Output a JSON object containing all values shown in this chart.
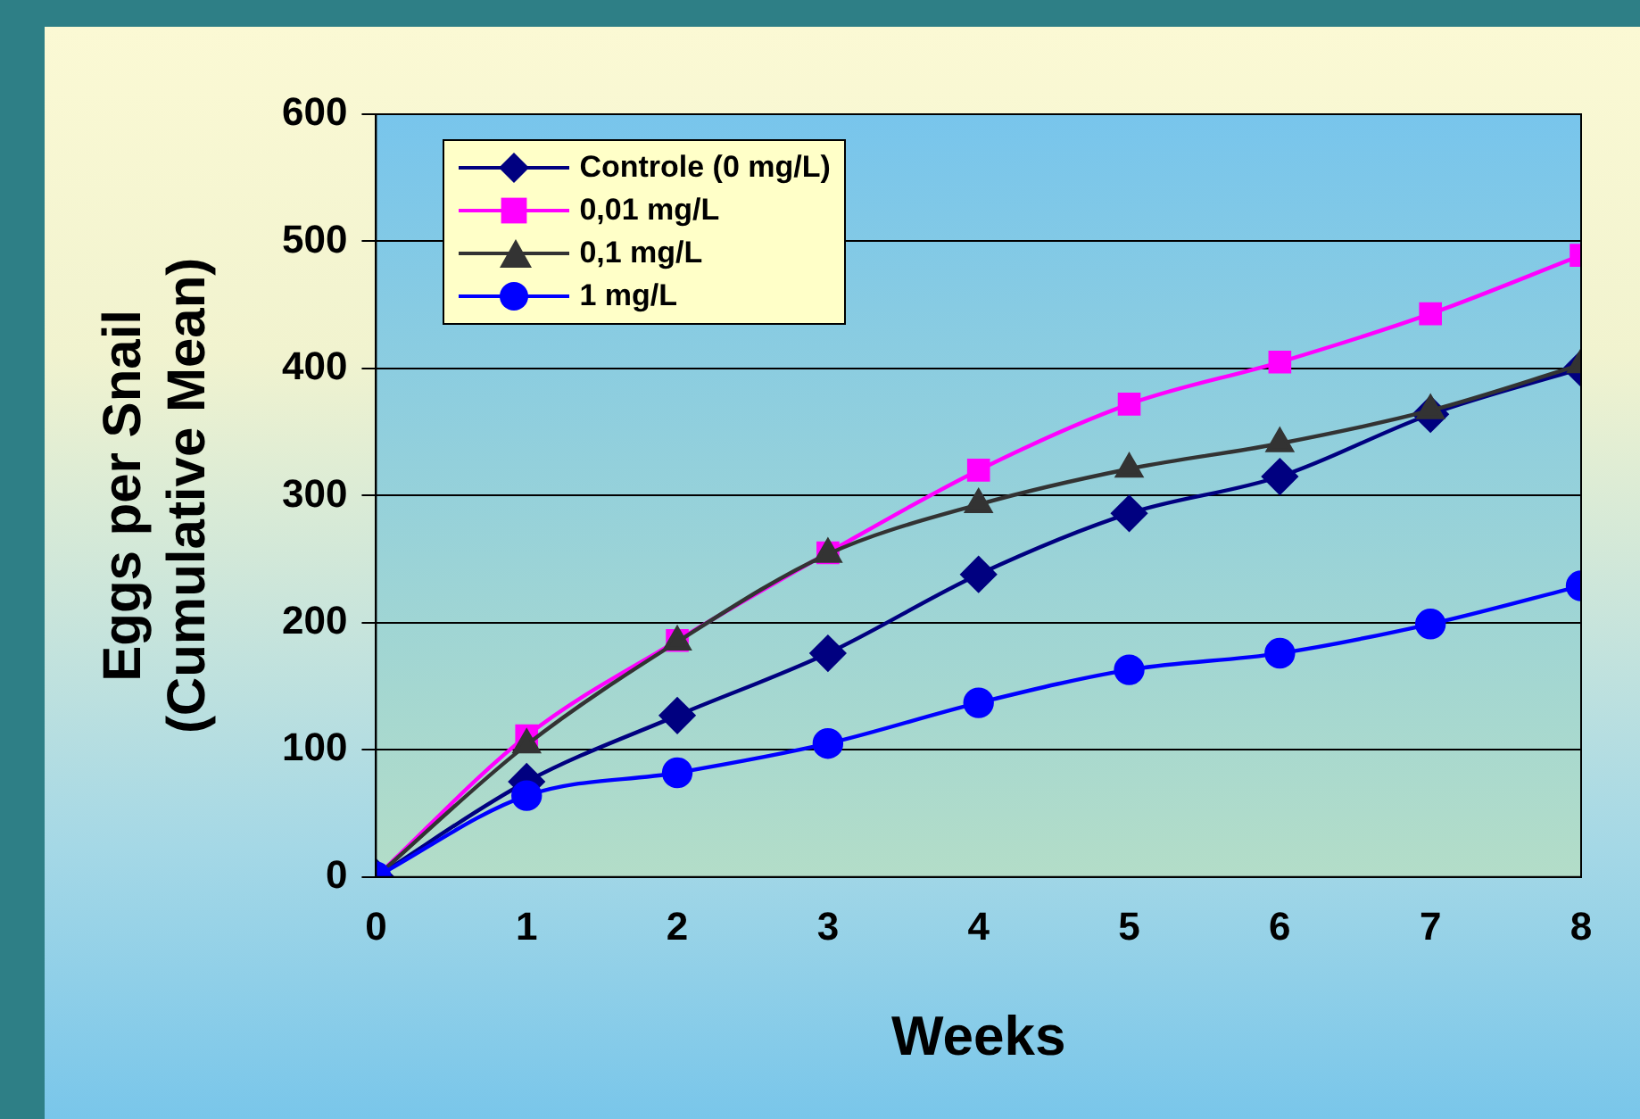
{
  "chart_data": {
    "type": "line",
    "xlabel": "Weeks",
    "ylabel": "Eggs per Snail\n(Cumulative Mean)",
    "x": [
      0,
      1,
      2,
      3,
      4,
      5,
      6,
      7,
      8
    ],
    "xlim": [
      0,
      8
    ],
    "xticks": [
      0,
      1,
      2,
      3,
      4,
      5,
      6,
      7,
      8
    ],
    "ylim": [
      0,
      600
    ],
    "yticks": [
      0,
      100,
      200,
      300,
      400,
      500,
      600
    ],
    "grid": "y",
    "legend": "top left",
    "series": [
      {
        "name": "Controle (0 mg/L)",
        "color": "#000080",
        "marker": "diamond",
        "values": [
          0,
          75,
          127,
          176,
          238,
          286,
          315,
          364,
          400
        ]
      },
      {
        "name": "0,01 mg/L",
        "color": "#ff00ff",
        "marker": "square",
        "values": [
          0,
          111,
          186,
          255,
          320,
          372,
          405,
          443,
          489
        ]
      },
      {
        "name": "0,1 mg/L",
        "color": "#333333",
        "marker": "triangle",
        "values": [
          0,
          104,
          185,
          254,
          293,
          321,
          341,
          367,
          403
        ]
      },
      {
        "name": "1 mg/L",
        "color": "#0000ff",
        "marker": "circle",
        "values": [
          0,
          64,
          82,
          105,
          137,
          163,
          176,
          199,
          229
        ]
      }
    ]
  }
}
